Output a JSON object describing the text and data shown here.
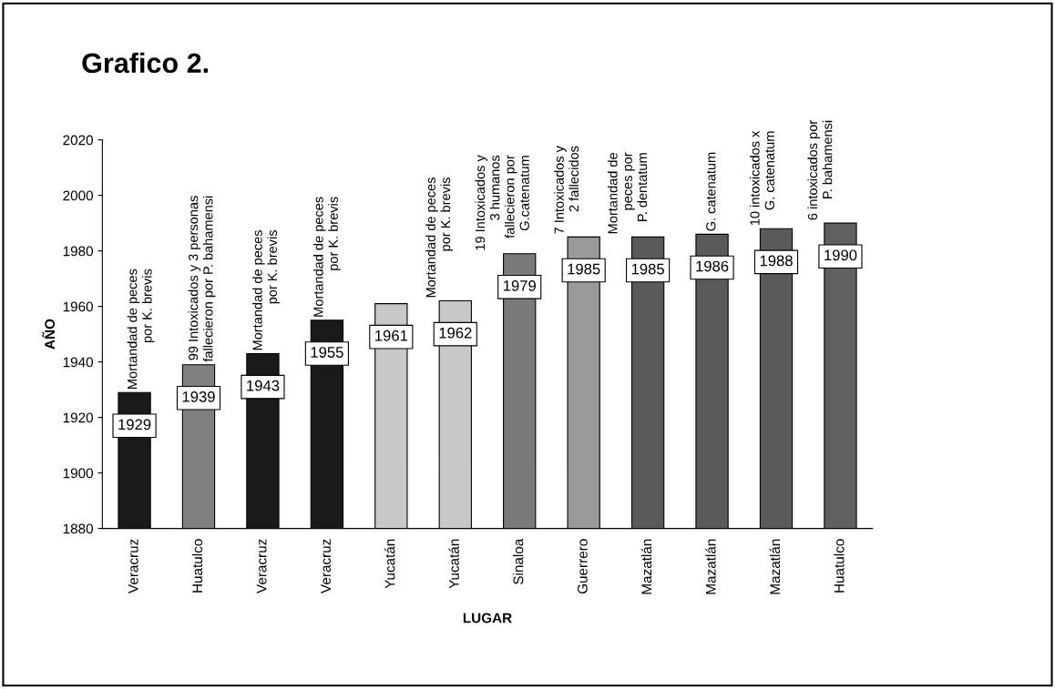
{
  "chart_data": {
    "type": "bar",
    "title": "Grafico 2.",
    "xlabel": "LUGAR",
    "ylabel": "AÑO",
    "categories": [
      "Veracruz",
      "Huatulco",
      "Veracruz",
      "Veracruz",
      "Yucatán",
      "Yucatán",
      "Sinaloa",
      "Guerrero",
      "Mazatlán",
      "Mazatlán",
      "Mazatlán",
      "Huatulco"
    ],
    "values": [
      1929,
      1939,
      1943,
      1955,
      1961,
      1962,
      1979,
      1985,
      1985,
      1986,
      1988,
      1990
    ],
    "data_labels": true,
    "colors": [
      "#1a1a1a",
      "#808080",
      "#1a1a1a",
      "#1a1a1a",
      "#c8c8c8",
      "#c8c8c8",
      "#7a7a7a",
      "#9a9a9a",
      "#5a5a5a",
      "#5a5a5a",
      "#5a5a5a",
      "#606060"
    ],
    "ylim": [
      1880,
      2020
    ],
    "yticks": [
      1880,
      1900,
      1920,
      1940,
      1960,
      1980,
      2000,
      2020
    ],
    "grid": false,
    "legend": false,
    "annotations": [
      "Mortandad de peces\npor K. brevis",
      "99 Intoxicados y 3 personas\nfallecieron por P. bahamensi",
      "Mortandad de peces\npor K. brevis",
      "Mortandad de peces\npor K. brevis",
      "Mortandad de peces\npor K. brevis",
      "19 Intoxicados y\n3 humanos\nfallecieron por\nG.catenatum",
      "7 Intoxicados y\n2 fallecidos",
      "Mortandad de\npeces por\nP. dentatum",
      "G. catenatum",
      "10 intoxicados x\nG. catenatum",
      "6 intoxicados por\nP. bahamensi"
    ]
  }
}
